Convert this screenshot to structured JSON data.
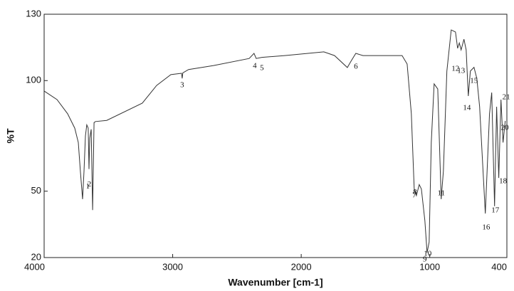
{
  "chart_data": {
    "type": "line",
    "xlabel": "Wavenumber [cm-1]",
    "ylabel": "%T",
    "xlim": [
      4000,
      400
    ],
    "ylim": [
      20,
      130
    ],
    "xticks": [
      4000,
      3000,
      2000,
      1000,
      400
    ],
    "yticks": [
      20,
      50,
      100,
      130
    ],
    "color": "#333333",
    "x": [
      4000,
      3900,
      3817,
      3762,
      3734,
      3718,
      3701,
      3690,
      3679,
      3668,
      3657,
      3651,
      3645,
      3634,
      3623,
      3612,
      3600,
      3513,
      3236,
      3125,
      3014,
      2931,
      2926,
      2921,
      2876,
      2682,
      2405,
      2367,
      2350,
      2306,
      2128,
      1824,
      1741,
      1641,
      1610,
      1575,
      1520,
      1215,
      1176,
      1143,
      1121,
      1104,
      1082,
      1065,
      1038,
      1021,
      1005,
      988,
      966,
      938,
      911,
      894,
      867,
      833,
      800,
      783,
      770,
      756,
      734,
      717,
      700,
      684,
      656,
      634,
      612,
      568,
      535,
      518,
      496,
      480,
      463,
      446,
      430,
      413
    ],
    "values": [
      95.3,
      91.4,
      85,
      78.5,
      72,
      59,
      46.4,
      59,
      75,
      80,
      78.5,
      60,
      74,
      78,
      41.5,
      81,
      81.5,
      82,
      89.8,
      97.8,
      102.7,
      103.3,
      101,
      103.5,
      105,
      106.8,
      110,
      112.3,
      110,
      110.5,
      111.3,
      113,
      111.3,
      105.9,
      109,
      112.3,
      111.3,
      111.3,
      107.5,
      85,
      51.2,
      48,
      53,
      51,
      36.7,
      22.2,
      27,
      72,
      98.5,
      96.2,
      46.4,
      59,
      104.3,
      122.9,
      122,
      114.6,
      117,
      113.9,
      118.7,
      113.9,
      93,
      104.3,
      106,
      101,
      88.2,
      39.9,
      85,
      94.6,
      43.2,
      88.2,
      56,
      91.4,
      72,
      81.8
    ],
    "annotations": [
      {
        "text": "1",
        "x": 3660,
        "y": 52
      },
      {
        "text": "2",
        "x": 3648,
        "y": 53
      },
      {
        "text": "3",
        "x": 2926,
        "y": 97.8
      },
      {
        "text": "4",
        "x": 2361,
        "y": 106.5
      },
      {
        "text": "5",
        "x": 2306,
        "y": 105.6
      },
      {
        "text": "6",
        "x": 1575,
        "y": 106.2
      },
      {
        "text": "7",
        "x": 1121,
        "y": 48
      },
      {
        "text": "8",
        "x": 1115,
        "y": 49.5
      },
      {
        "text": "9",
        "x": 1038,
        "y": 19
      },
      {
        "text": "10",
        "x": 1016,
        "y": 21.6
      },
      {
        "text": "11",
        "x": 911,
        "y": 49
      },
      {
        "text": "12",
        "x": 800,
        "y": 105.2
      },
      {
        "text": "13",
        "x": 756,
        "y": 104.3
      },
      {
        "text": "14",
        "x": 711,
        "y": 87.5
      },
      {
        "text": "15",
        "x": 656,
        "y": 99.8
      },
      {
        "text": "16",
        "x": 561,
        "y": 33.5
      },
      {
        "text": "17",
        "x": 490,
        "y": 41.2
      },
      {
        "text": "18",
        "x": 430,
        "y": 54.4
      },
      {
        "text": "20",
        "x": 416,
        "y": 78.5
      },
      {
        "text": "21",
        "x": 405,
        "y": 92.4
      }
    ]
  }
}
